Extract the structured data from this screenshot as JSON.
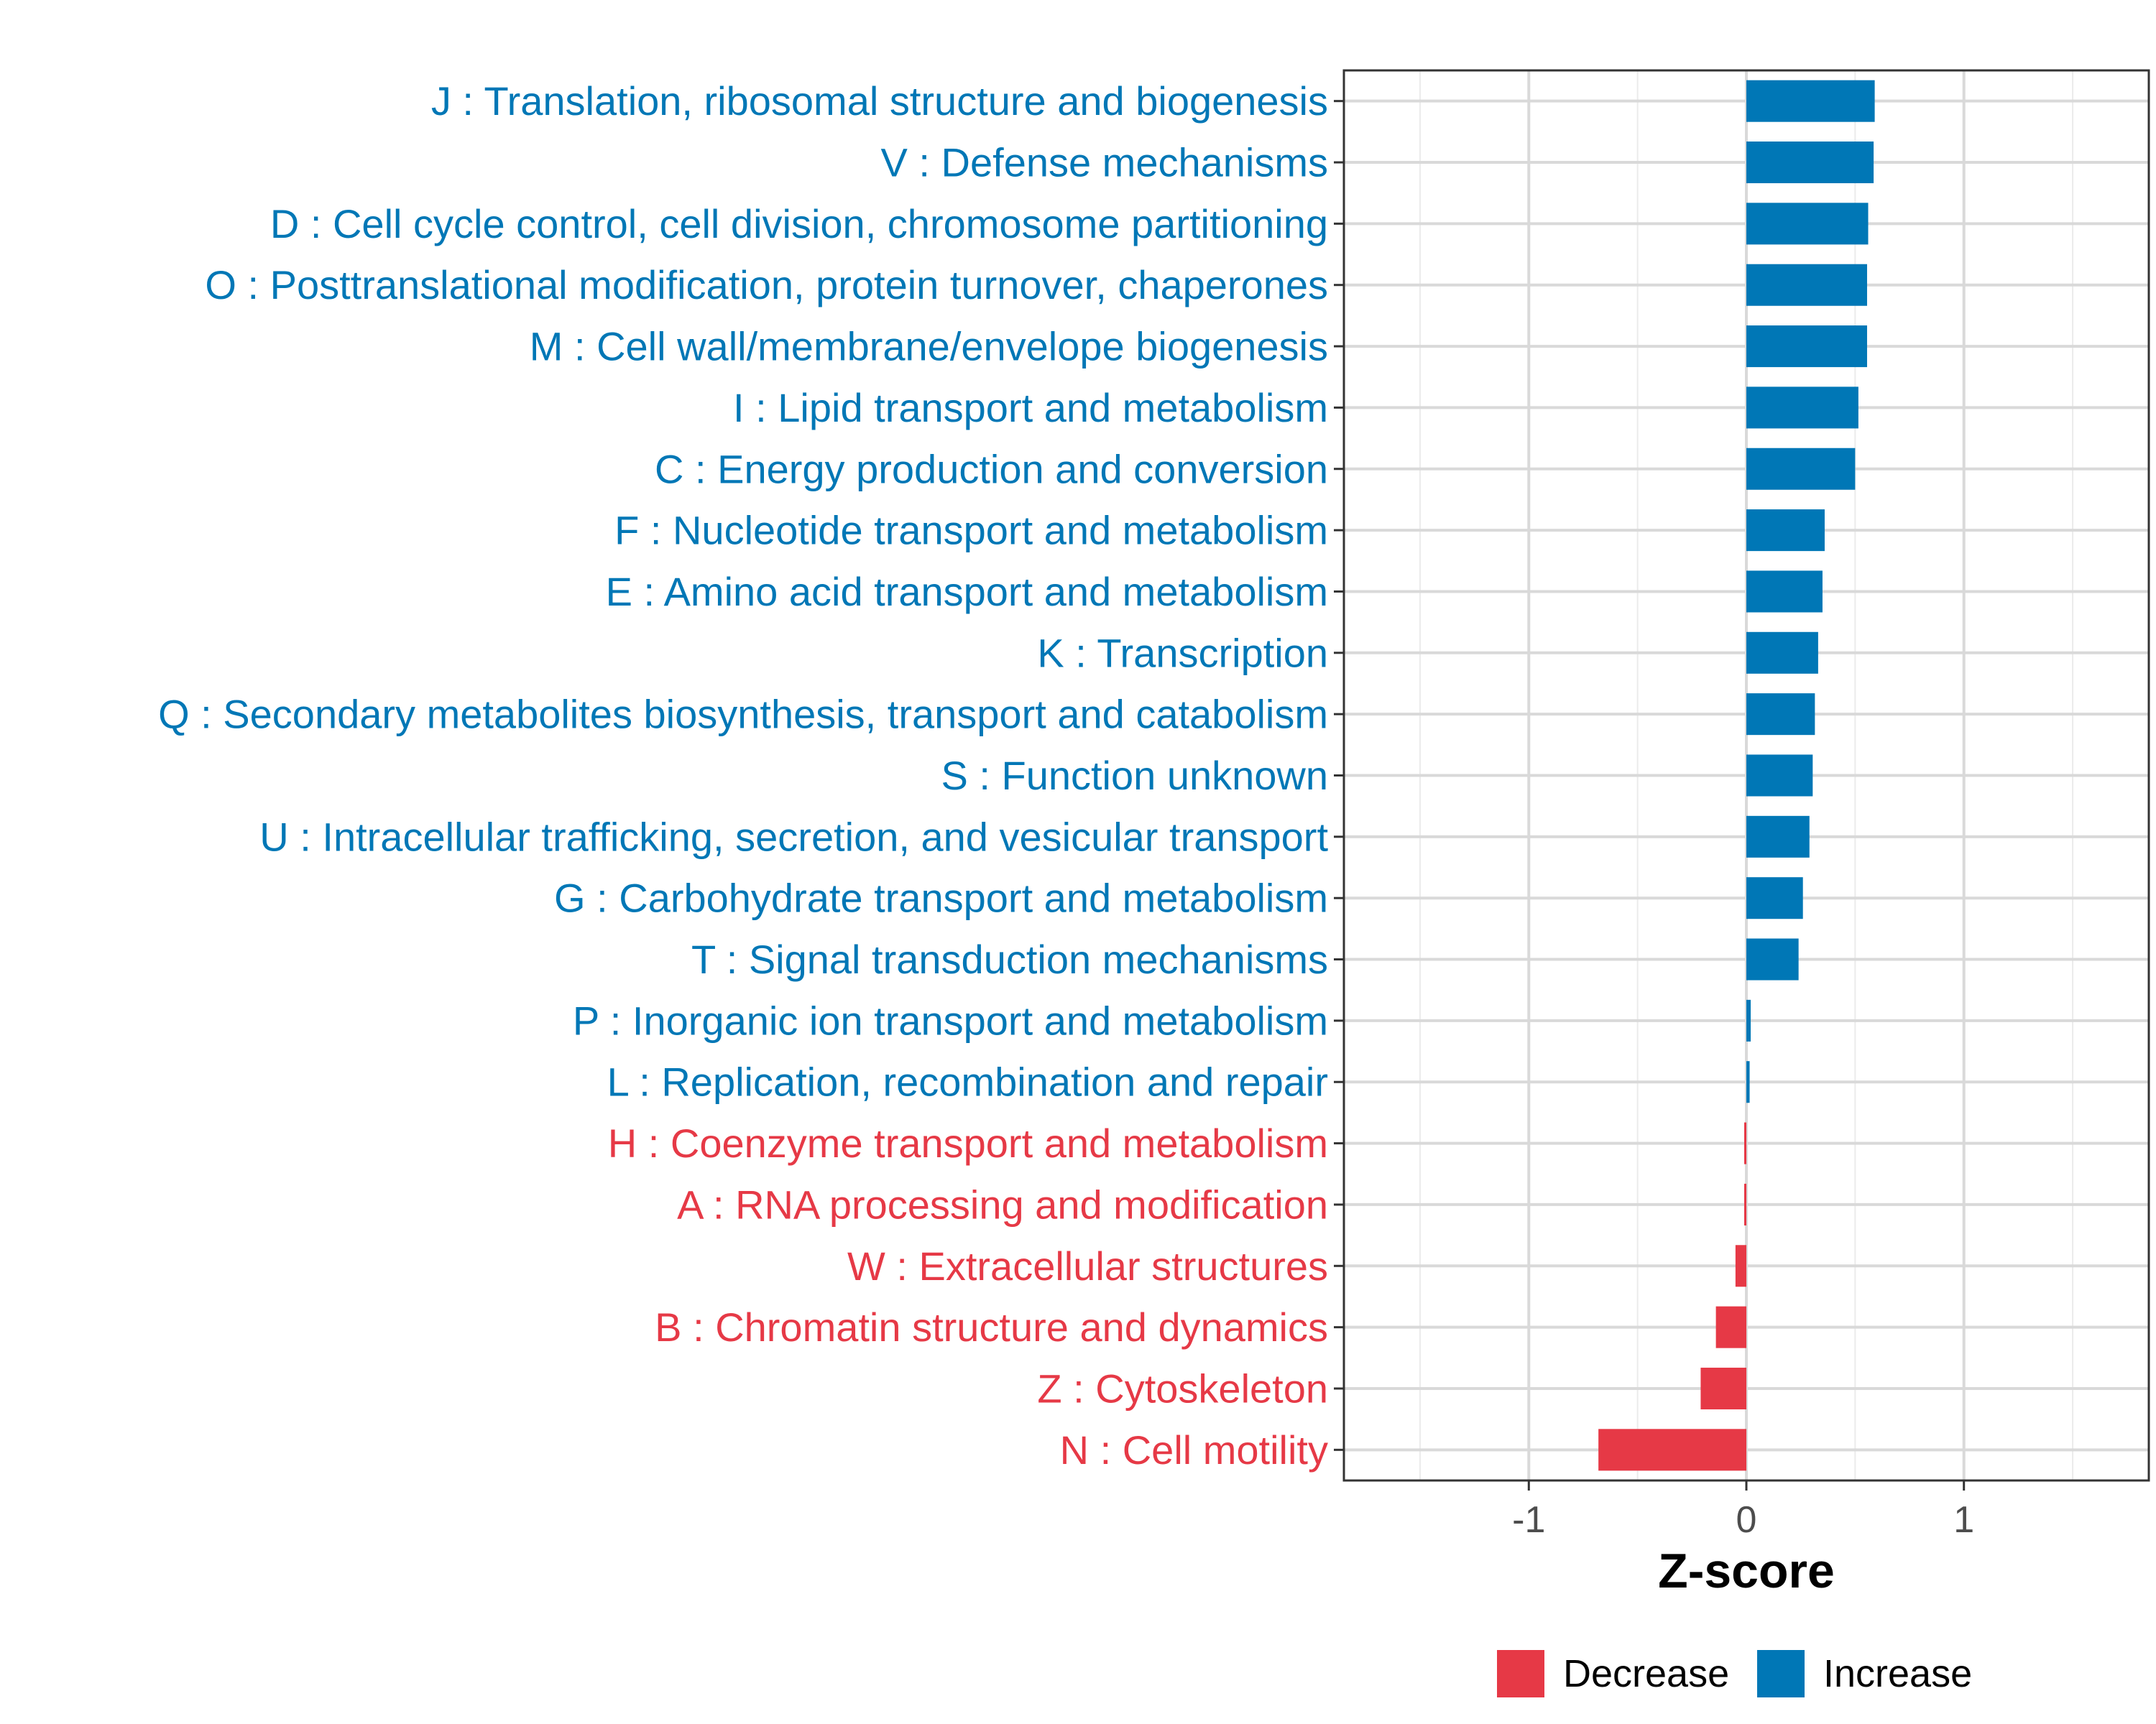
{
  "chart_data": {
    "type": "bar",
    "orientation": "horizontal",
    "xlabel": "Z-score",
    "ylabel": "",
    "xlim": [
      -1.85,
      1.85
    ],
    "xticks": [
      -1,
      0,
      1
    ],
    "xtick_labels": [
      "-1",
      "0",
      "1"
    ],
    "grid": true,
    "legend_position": "bottom",
    "colors": {
      "Decrease": "#e63946",
      "Increase": "#0077b6"
    },
    "legend": [
      {
        "label": "Decrease",
        "color": "#e63946"
      },
      {
        "label": "Increase",
        "color": "#0077b6"
      }
    ],
    "categories": [
      "J : Translation, ribosomal structure and biogenesis",
      "V : Defense mechanisms",
      "D : Cell cycle control, cell division, chromosome partitioning",
      "O : Posttranslational modification, protein turnover, chaperones",
      "M : Cell wall/membrane/envelope biogenesis",
      "I : Lipid transport and metabolism",
      "C : Energy production and conversion",
      "F : Nucleotide transport and metabolism",
      "E : Amino acid transport and metabolism",
      "K : Transcription",
      "Q : Secondary metabolites biosynthesis, transport and catabolism",
      "S : Function unknown",
      "U : Intracellular trafficking, secretion, and vesicular transport",
      "G : Carbohydrate transport and metabolism",
      "T : Signal transduction mechanisms",
      "P : Inorganic ion transport and metabolism",
      "L : Replication, recombination and repair",
      "H : Coenzyme transport and metabolism",
      "A : RNA processing and modification",
      "W : Extracellular structures",
      "B : Chromatin structure and dynamics",
      "Z : Cytoskeleton",
      "N : Cell motility"
    ],
    "values": [
      0.59,
      0.585,
      0.56,
      0.555,
      0.555,
      0.515,
      0.5,
      0.36,
      0.35,
      0.33,
      0.315,
      0.305,
      0.29,
      0.26,
      0.24,
      0.02,
      0.015,
      -0.005,
      -0.01,
      -0.05,
      -0.14,
      -0.21,
      -0.68
    ],
    "groups": [
      "Increase",
      "Increase",
      "Increase",
      "Increase",
      "Increase",
      "Increase",
      "Increase",
      "Increase",
      "Increase",
      "Increase",
      "Increase",
      "Increase",
      "Increase",
      "Increase",
      "Increase",
      "Increase",
      "Increase",
      "Decrease",
      "Decrease",
      "Decrease",
      "Decrease",
      "Decrease",
      "Decrease"
    ]
  }
}
